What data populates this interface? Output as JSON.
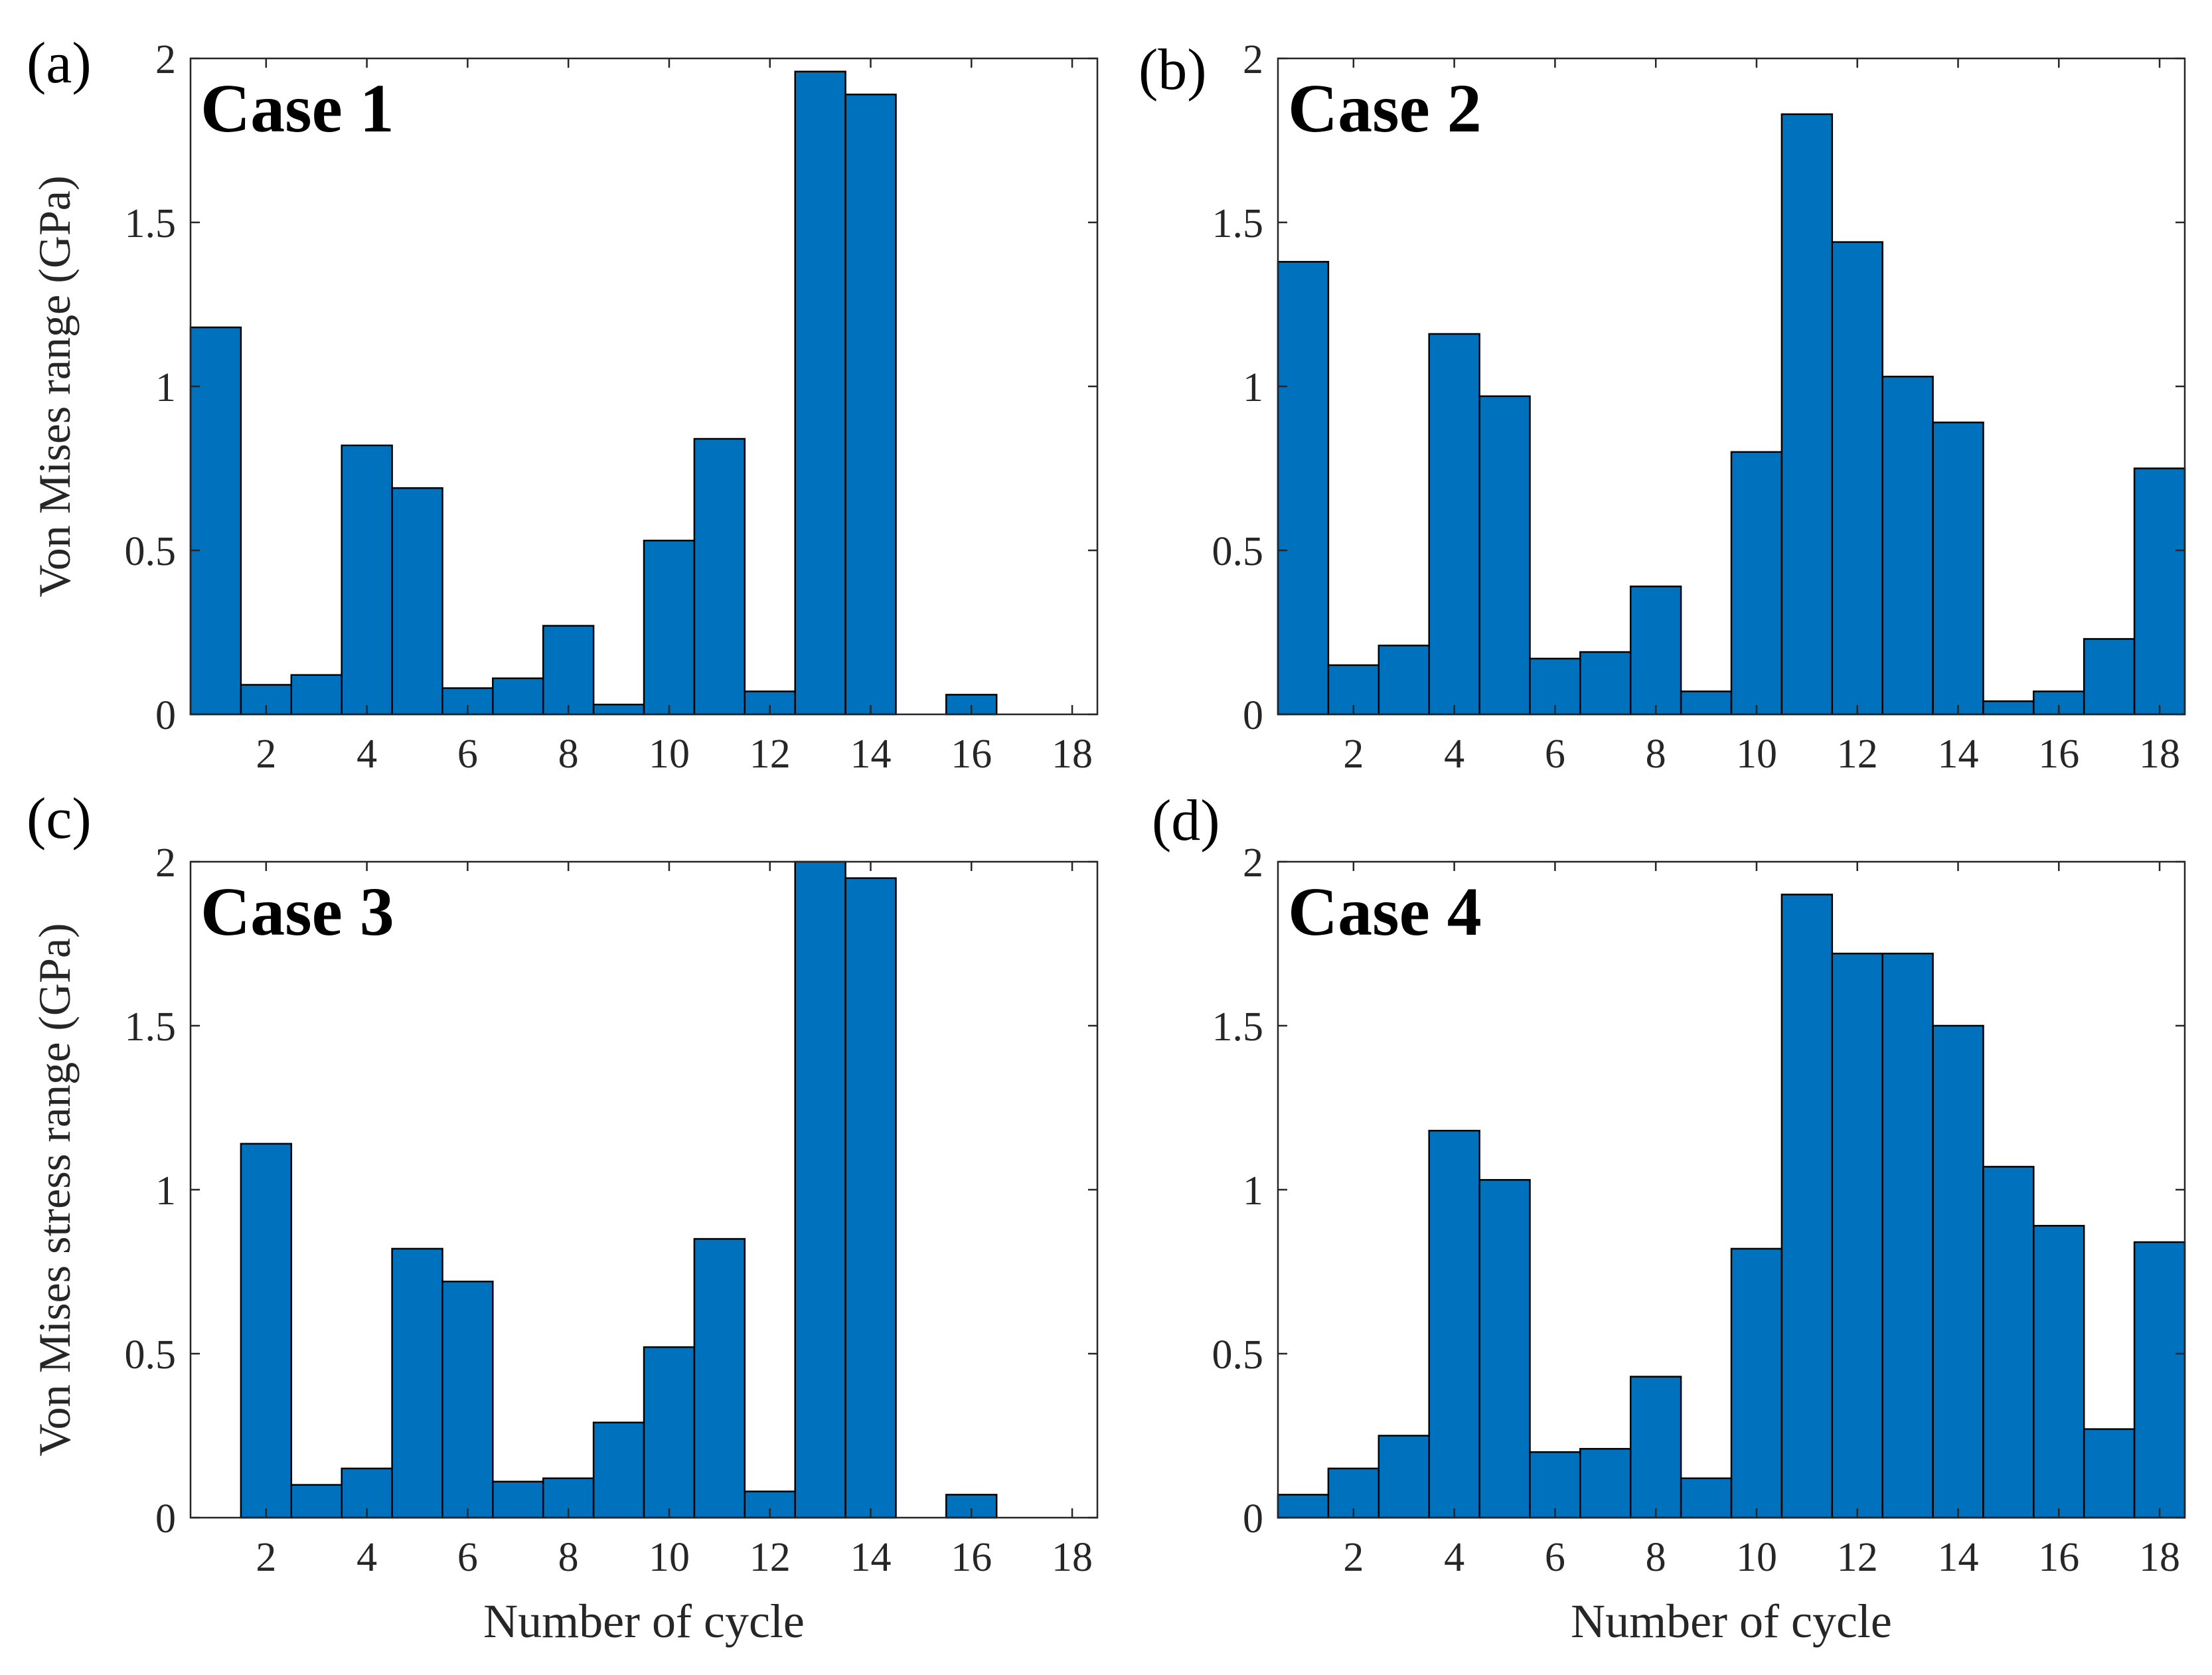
{
  "chart_data": [
    {
      "type": "bar",
      "panel_label": "(a)",
      "title": "Case 1",
      "xlabel": "",
      "ylabel": "Von Mises range (GPa)",
      "x": [
        1,
        2,
        3,
        4,
        5,
        6,
        7,
        8,
        9,
        10,
        11,
        12,
        13,
        14,
        15,
        16
      ],
      "values": [
        1.18,
        0.09,
        0.12,
        0.82,
        0.69,
        0.08,
        0.11,
        0.27,
        0.03,
        0.53,
        0.84,
        0.07,
        1.96,
        1.89,
        0.0,
        0.06
      ],
      "xlim": [
        0.5,
        18.5
      ],
      "ylim": [
        0,
        2
      ],
      "xticks": [
        "2",
        "4",
        "6",
        "8",
        "10",
        "12",
        "14",
        "16",
        "18"
      ],
      "yticks": [
        "0",
        "0.5",
        "1",
        "1.5",
        "2"
      ],
      "grid": false
    },
    {
      "type": "bar",
      "panel_label": "(b)",
      "title": "Case 2",
      "xlabel": "",
      "ylabel": "",
      "x": [
        1,
        2,
        3,
        4,
        5,
        6,
        7,
        8,
        9,
        10,
        11,
        12,
        13,
        14,
        15,
        16,
        17,
        18
      ],
      "values": [
        1.38,
        0.15,
        0.21,
        1.16,
        0.97,
        0.17,
        0.19,
        0.39,
        0.07,
        0.8,
        1.83,
        1.44,
        1.03,
        0.89,
        0.04,
        0.07,
        0.23,
        0.75
      ],
      "xlim": [
        0.5,
        18.5
      ],
      "ylim": [
        0,
        2
      ],
      "xticks": [
        "2",
        "4",
        "6",
        "8",
        "10",
        "12",
        "14",
        "16",
        "18"
      ],
      "yticks": [
        "0",
        "0.5",
        "1",
        "1.5",
        "2"
      ],
      "grid": false
    },
    {
      "type": "bar",
      "panel_label": "(c)",
      "title": "Case 3",
      "xlabel": "Number of cycle",
      "ylabel": "Von Mises stress range (GPa)",
      "x": [
        2,
        3,
        4,
        5,
        6,
        7,
        8,
        9,
        10,
        11,
        12,
        13,
        14,
        16
      ],
      "values": [
        1.14,
        0.1,
        0.15,
        0.82,
        0.72,
        0.11,
        0.12,
        0.29,
        0.52,
        0.85,
        0.08,
        2.0,
        1.95,
        0.07
      ],
      "xlim": [
        0.5,
        18.5
      ],
      "ylim": [
        0,
        2
      ],
      "xticks": [
        "2",
        "4",
        "6",
        "8",
        "10",
        "12",
        "14",
        "16",
        "18"
      ],
      "yticks": [
        "0",
        "0.5",
        "1",
        "1.5",
        "2"
      ],
      "grid": false
    },
    {
      "type": "bar",
      "panel_label": "(d)",
      "title": "Case 4",
      "xlabel": "Number of cycle",
      "ylabel": "",
      "x": [
        1,
        2,
        3,
        4,
        5,
        6,
        7,
        8,
        9,
        10,
        11,
        12,
        13,
        14,
        15,
        16,
        17,
        18
      ],
      "values": [
        0.07,
        0.15,
        0.25,
        1.18,
        1.03,
        0.2,
        0.21,
        0.43,
        0.12,
        0.82,
        1.9,
        1.72,
        1.72,
        1.5,
        1.07,
        0.89,
        0.27,
        0.84
      ],
      "xlim": [
        0.5,
        18.5
      ],
      "ylim": [
        0,
        2
      ],
      "xticks": [
        "2",
        "4",
        "6",
        "8",
        "10",
        "12",
        "14",
        "16",
        "18"
      ],
      "yticks": [
        "0",
        "0.5",
        "1",
        "1.5",
        "2"
      ],
      "grid": false
    }
  ]
}
